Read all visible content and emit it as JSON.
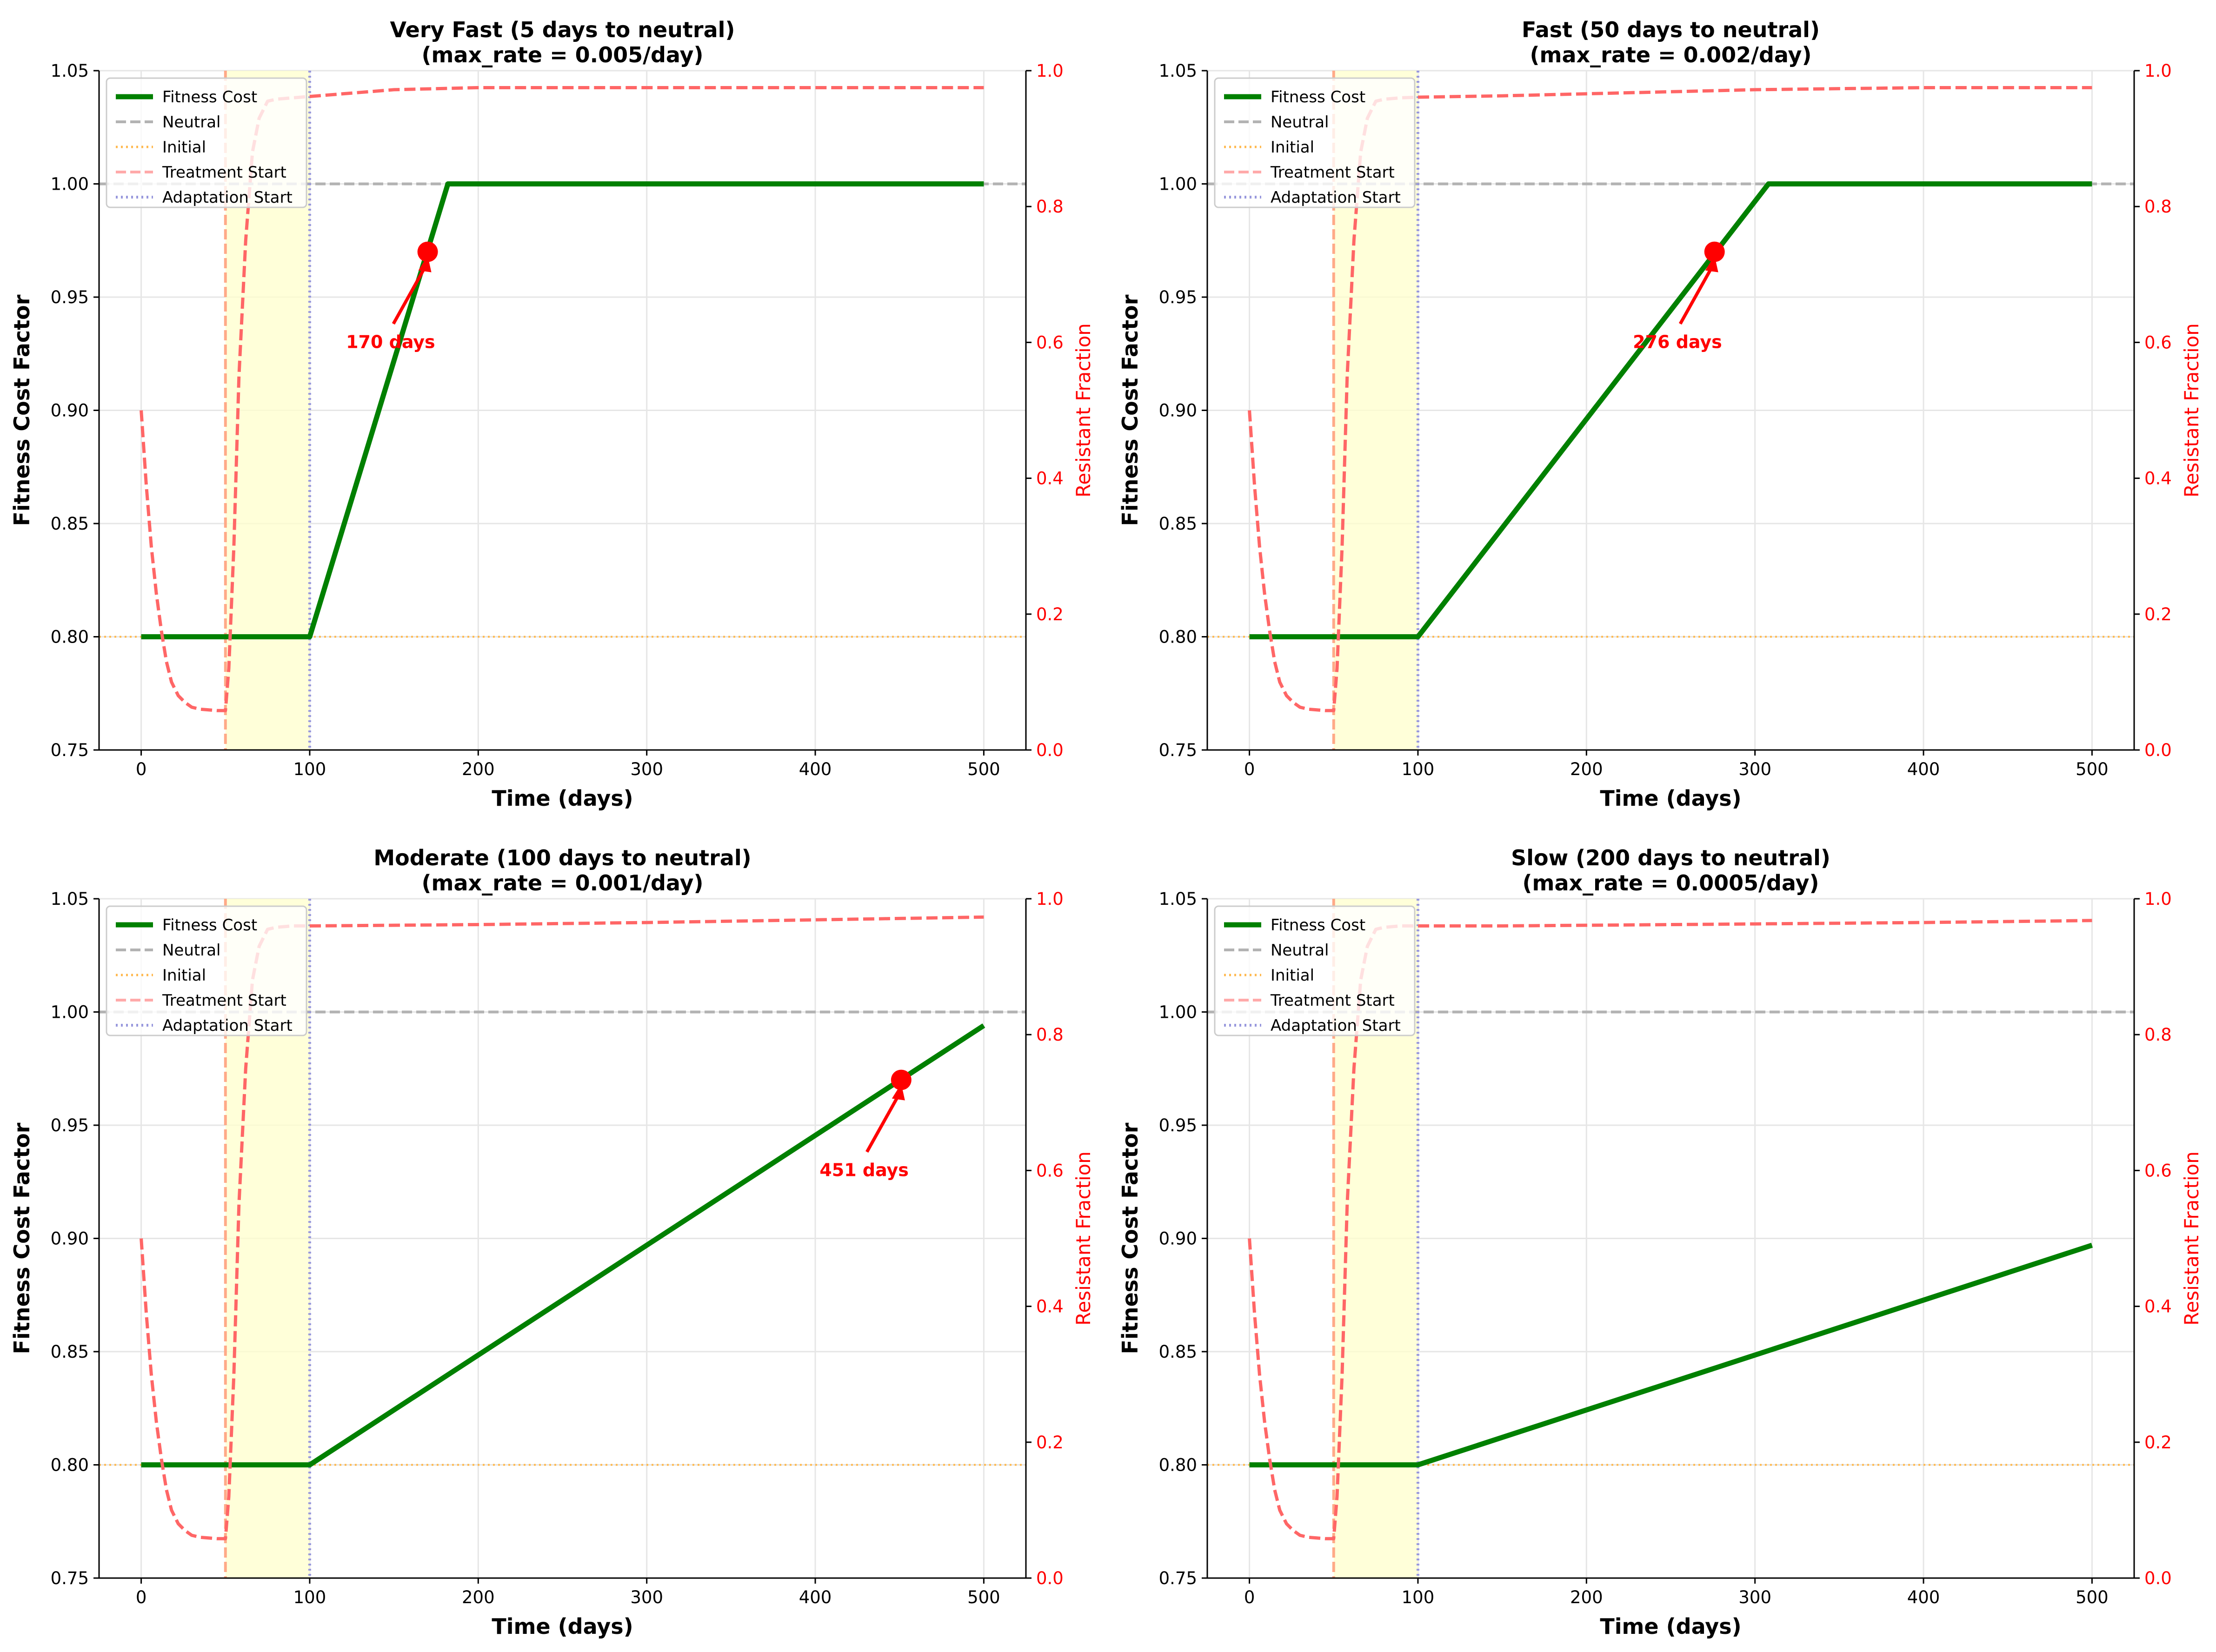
{
  "chart_data": [
    {
      "type": "line",
      "title": "Very Fast (5 days to neutral)",
      "subtitle": "(max_rate = 0.005/day)",
      "xlabel": "Time (days)",
      "ylabel": "Fitness Cost Factor",
      "y2label": "Resistant Fraction",
      "xlim": [
        -25,
        525
      ],
      "ylim": [
        0.75,
        1.05
      ],
      "y2lim": [
        0.0,
        1.0
      ],
      "x_ticks": [
        "0",
        "100",
        "200",
        "300",
        "400",
        "500"
      ],
      "y_ticks": [
        "0.75",
        "0.80",
        "0.85",
        "0.90",
        "0.95",
        "1.00",
        "1.05"
      ],
      "y2_ticks": [
        "0.0",
        "0.2",
        "0.4",
        "0.6",
        "0.8",
        "1.0"
      ],
      "grid": true,
      "legend_position": "top-left",
      "legend": [
        "Fitness Cost",
        "Neutral",
        "Initial",
        "Treatment Start",
        "Adaptation Start"
      ],
      "shaded_region": {
        "x": [
          50,
          100
        ],
        "color": "#ffffcc"
      },
      "reference_lines": {
        "neutral_y": 1.0,
        "initial_y": 0.8,
        "treatment_start_x": 50,
        "adaptation_start_x": 100
      },
      "series": [
        {
          "name": "Fitness Cost",
          "axis": "left",
          "color": "#008000",
          "x": [
            0,
            100,
            182,
            500
          ],
          "y": [
            0.8,
            0.8,
            1.0,
            1.0
          ]
        },
        {
          "axis": "right",
          "color": "#ff6666",
          "x": [
            0,
            3,
            6,
            9,
            12,
            15,
            18,
            22,
            26,
            30,
            35,
            40,
            45,
            50,
            52,
            55,
            58,
            62,
            66,
            70,
            75,
            80,
            90,
            100,
            150,
            200,
            300,
            400,
            500
          ],
          "y": [
            0.5,
            0.39,
            0.3,
            0.23,
            0.175,
            0.13,
            0.1,
            0.08,
            0.07,
            0.063,
            0.06,
            0.059,
            0.058,
            0.058,
            0.12,
            0.3,
            0.55,
            0.75,
            0.88,
            0.93,
            0.955,
            0.958,
            0.96,
            0.962,
            0.972,
            0.975,
            0.975,
            0.975,
            0.975
          ]
        }
      ],
      "marker": {
        "x": 170,
        "y": 0.97,
        "label": "170 days",
        "label_x": 148,
        "label_y": 0.93
      }
    },
    {
      "type": "line",
      "title": "Fast (50 days to neutral)",
      "subtitle": "(max_rate = 0.002/day)",
      "xlabel": "Time (days)",
      "ylabel": "Fitness Cost Factor",
      "y2label": "Resistant Fraction",
      "xlim": [
        -25,
        525
      ],
      "ylim": [
        0.75,
        1.05
      ],
      "y2lim": [
        0.0,
        1.0
      ],
      "x_ticks": [
        "0",
        "100",
        "200",
        "300",
        "400",
        "500"
      ],
      "y_ticks": [
        "0.75",
        "0.80",
        "0.85",
        "0.90",
        "0.95",
        "1.00",
        "1.05"
      ],
      "y2_ticks": [
        "0.0",
        "0.2",
        "0.4",
        "0.6",
        "0.8",
        "1.0"
      ],
      "grid": true,
      "legend_position": "top-left",
      "legend": [
        "Fitness Cost",
        "Neutral",
        "Initial",
        "Treatment Start",
        "Adaptation Start"
      ],
      "shaded_region": {
        "x": [
          50,
          100
        ],
        "color": "#ffffcc"
      },
      "reference_lines": {
        "neutral_y": 1.0,
        "initial_y": 0.8,
        "treatment_start_x": 50,
        "adaptation_start_x": 100
      },
      "series": [
        {
          "name": "Fitness Cost",
          "axis": "left",
          "color": "#008000",
          "x": [
            0,
            100,
            308,
            500
          ],
          "y": [
            0.8,
            0.8,
            1.0,
            1.0
          ]
        },
        {
          "axis": "right",
          "color": "#ff6666",
          "x": [
            0,
            3,
            6,
            9,
            12,
            15,
            18,
            22,
            26,
            30,
            35,
            40,
            45,
            50,
            52,
            55,
            58,
            62,
            66,
            70,
            75,
            80,
            90,
            100,
            150,
            200,
            300,
            400,
            500
          ],
          "y": [
            0.5,
            0.39,
            0.3,
            0.23,
            0.175,
            0.13,
            0.1,
            0.08,
            0.07,
            0.063,
            0.06,
            0.059,
            0.058,
            0.058,
            0.12,
            0.3,
            0.55,
            0.75,
            0.88,
            0.93,
            0.955,
            0.958,
            0.96,
            0.961,
            0.963,
            0.966,
            0.972,
            0.975,
            0.975
          ]
        }
      ],
      "marker": {
        "x": 276,
        "y": 0.97,
        "label": "276 days",
        "label_x": 254,
        "label_y": 0.93
      }
    },
    {
      "type": "line",
      "title": "Moderate (100 days to neutral)",
      "subtitle": "(max_rate = 0.001/day)",
      "xlabel": "Time (days)",
      "ylabel": "Fitness Cost Factor",
      "y2label": "Resistant Fraction",
      "xlim": [
        -25,
        525
      ],
      "ylim": [
        0.75,
        1.05
      ],
      "y2lim": [
        0.0,
        1.0
      ],
      "x_ticks": [
        "0",
        "100",
        "200",
        "300",
        "400",
        "500"
      ],
      "y_ticks": [
        "0.75",
        "0.80",
        "0.85",
        "0.90",
        "0.95",
        "1.00",
        "1.05"
      ],
      "y2_ticks": [
        "0.0",
        "0.2",
        "0.4",
        "0.6",
        "0.8",
        "1.0"
      ],
      "grid": true,
      "legend_position": "top-left",
      "legend": [
        "Fitness Cost",
        "Neutral",
        "Initial",
        "Treatment Start",
        "Adaptation Start"
      ],
      "shaded_region": {
        "x": [
          50,
          100
        ],
        "color": "#ffffcc"
      },
      "reference_lines": {
        "neutral_y": 1.0,
        "initial_y": 0.8,
        "treatment_start_x": 50,
        "adaptation_start_x": 100
      },
      "series": [
        {
          "name": "Fitness Cost",
          "axis": "left",
          "color": "#008000",
          "x": [
            0,
            100,
            500
          ],
          "y": [
            0.8,
            0.8,
            0.994
          ]
        },
        {
          "axis": "right",
          "color": "#ff6666",
          "x": [
            0,
            3,
            6,
            9,
            12,
            15,
            18,
            22,
            26,
            30,
            35,
            40,
            45,
            50,
            52,
            55,
            58,
            62,
            66,
            70,
            75,
            80,
            90,
            100,
            150,
            200,
            300,
            400,
            500
          ],
          "y": [
            0.5,
            0.39,
            0.3,
            0.23,
            0.175,
            0.13,
            0.1,
            0.08,
            0.07,
            0.063,
            0.06,
            0.059,
            0.058,
            0.058,
            0.12,
            0.3,
            0.55,
            0.75,
            0.88,
            0.93,
            0.955,
            0.958,
            0.96,
            0.96,
            0.961,
            0.962,
            0.965,
            0.969,
            0.973
          ]
        }
      ],
      "marker": {
        "x": 451,
        "y": 0.97,
        "label": "451 days",
        "label_x": 429,
        "label_y": 0.93
      }
    },
    {
      "type": "line",
      "title": "Slow (200 days to neutral)",
      "subtitle": "(max_rate = 0.0005/day)",
      "xlabel": "Time (days)",
      "ylabel": "Fitness Cost Factor",
      "y2label": "Resistant Fraction",
      "xlim": [
        -25,
        525
      ],
      "ylim": [
        0.75,
        1.05
      ],
      "y2lim": [
        0.0,
        1.0
      ],
      "x_ticks": [
        "0",
        "100",
        "200",
        "300",
        "400",
        "500"
      ],
      "y_ticks": [
        "0.75",
        "0.80",
        "0.85",
        "0.90",
        "0.95",
        "1.00",
        "1.05"
      ],
      "y2_ticks": [
        "0.0",
        "0.2",
        "0.4",
        "0.6",
        "0.8",
        "1.0"
      ],
      "grid": true,
      "legend_position": "top-left",
      "legend": [
        "Fitness Cost",
        "Neutral",
        "Initial",
        "Treatment Start",
        "Adaptation Start"
      ],
      "shaded_region": {
        "x": [
          50,
          100
        ],
        "color": "#ffffcc"
      },
      "reference_lines": {
        "neutral_y": 1.0,
        "initial_y": 0.8,
        "treatment_start_x": 50,
        "adaptation_start_x": 100
      },
      "series": [
        {
          "name": "Fitness Cost",
          "axis": "left",
          "color": "#008000",
          "x": [
            0,
            100,
            500
          ],
          "y": [
            0.8,
            0.8,
            0.897
          ]
        },
        {
          "axis": "right",
          "color": "#ff6666",
          "x": [
            0,
            3,
            6,
            9,
            12,
            15,
            18,
            22,
            26,
            30,
            35,
            40,
            45,
            50,
            52,
            55,
            58,
            62,
            66,
            70,
            75,
            80,
            90,
            100,
            150,
            200,
            300,
            400,
            500
          ],
          "y": [
            0.5,
            0.39,
            0.3,
            0.23,
            0.175,
            0.13,
            0.1,
            0.08,
            0.07,
            0.063,
            0.06,
            0.059,
            0.058,
            0.058,
            0.12,
            0.3,
            0.55,
            0.75,
            0.88,
            0.93,
            0.955,
            0.958,
            0.96,
            0.96,
            0.96,
            0.961,
            0.963,
            0.965,
            0.968
          ]
        }
      ],
      "marker": null
    }
  ]
}
